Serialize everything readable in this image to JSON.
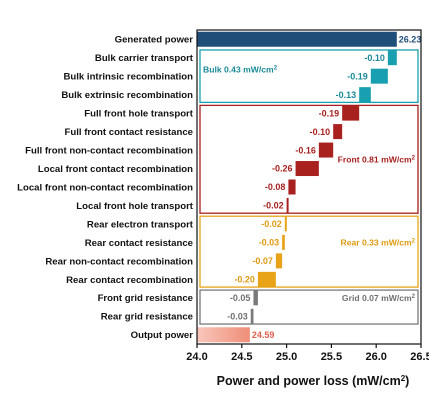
{
  "chart_data": {
    "type": "bar",
    "subtype": "waterfall-horizontal",
    "xlabel": "Power and power loss (mW/cm²)",
    "xlim": [
      24.0,
      26.5
    ],
    "xticks": [
      "24.0",
      "24.5",
      "25.0",
      "25.5",
      "26.0",
      "26.5"
    ],
    "xtick_values": [
      24.0,
      24.5,
      25.0,
      25.5,
      26.0,
      26.5
    ],
    "categories": [
      "Generated power",
      "Bulk carrier transport",
      "Bulk intrinsic recombination",
      "Bulk extrinsic recombination",
      "Full front hole transport",
      "Full front contact resistance",
      "Full front non-contact recombination",
      "Local front contact recombination",
      "Local front non-contact recombination",
      "Local front hole transport",
      "Rear electron transport",
      "Rear contact resistance",
      "Rear non-contact recombination",
      "Rear contact recombination",
      "Front grid resistance",
      "Rear grid resistance",
      "Output power"
    ],
    "values": [
      26.23,
      -0.1,
      -0.19,
      -0.13,
      -0.19,
      -0.1,
      -0.16,
      -0.26,
      -0.08,
      -0.02,
      -0.02,
      -0.03,
      -0.07,
      -0.2,
      -0.05,
      -0.03,
      24.59
    ],
    "value_labels": [
      "26.23",
      "-0.10",
      "-0.19",
      "-0.13",
      "-0.19",
      "-0.10",
      "-0.16",
      "-0.26",
      "-0.08",
      "-0.02",
      "-0.02",
      "-0.03",
      "-0.07",
      "-0.20",
      "-0.05",
      "-0.03",
      "24.59"
    ],
    "group_index": [
      0,
      1,
      1,
      1,
      2,
      2,
      2,
      2,
      2,
      2,
      3,
      3,
      3,
      3,
      4,
      4,
      5
    ],
    "groups": [
      {
        "name": "Generated power",
        "color": "#1f4e79",
        "text_color": "#1f4e79",
        "label": ""
      },
      {
        "name": "Bulk",
        "color": "#18a0b0",
        "text_color": "#1a8a99",
        "label": "Bulk 0.43 mW/cm²"
      },
      {
        "name": "Front",
        "color": "#a8211f",
        "text_color": "#a8211f",
        "label": "Front 0.81 mW/cm²"
      },
      {
        "name": "Rear",
        "color": "#e8a318",
        "text_color": "#e09a10",
        "label": "Rear 0.33 mW/cm²"
      },
      {
        "name": "Grid",
        "color": "#7a7a7a",
        "text_color": "#707070",
        "label": "Grid 0.07 mW/cm²"
      },
      {
        "name": "Output power",
        "color": "#ef8e78",
        "text_color": "#e0604a",
        "label": ""
      }
    ]
  }
}
